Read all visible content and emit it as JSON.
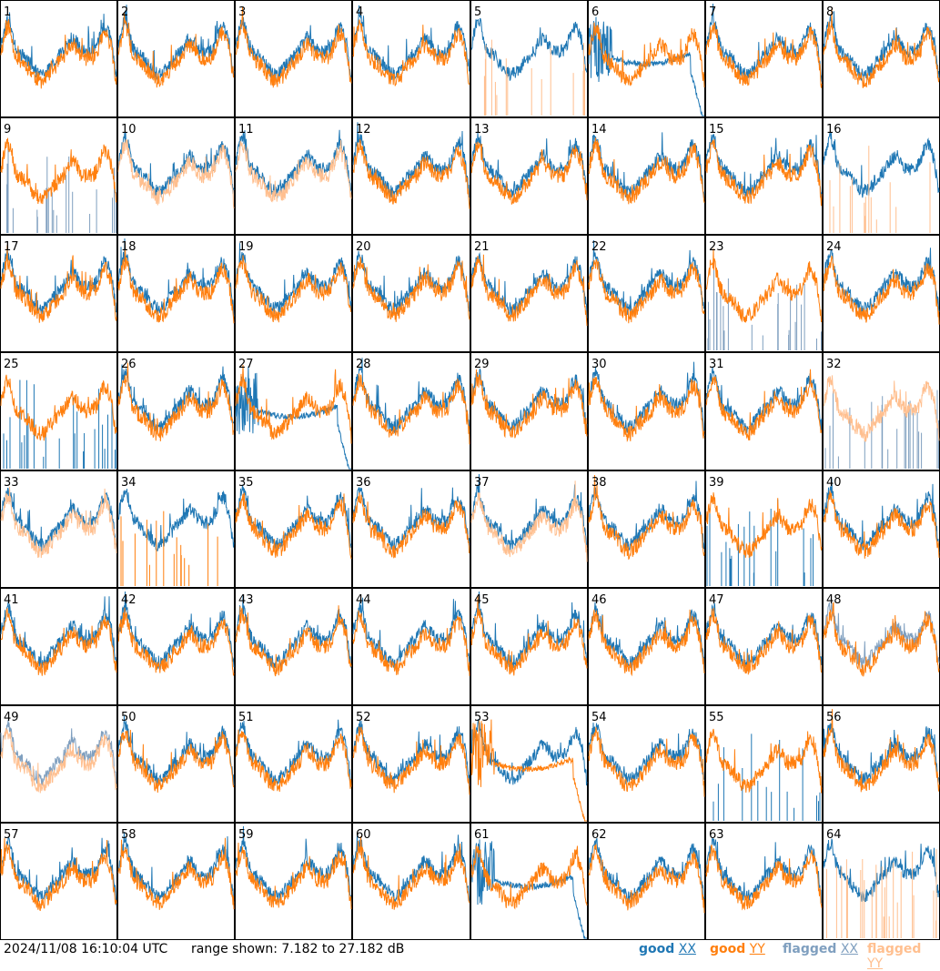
{
  "chart_data": {
    "type": "line",
    "panel_count": 64,
    "panel_labels": [
      "1",
      "2",
      "3",
      "4",
      "5",
      "6",
      "7",
      "8",
      "9",
      "10",
      "11",
      "12",
      "13",
      "14",
      "15",
      "16",
      "17",
      "18",
      "19",
      "20",
      "21",
      "22",
      "23",
      "24",
      "25",
      "26",
      "27",
      "28",
      "29",
      "30",
      "31",
      "32",
      "33",
      "34",
      "35",
      "36",
      "37",
      "38",
      "39",
      "40",
      "41",
      "42",
      "43",
      "44",
      "45",
      "46",
      "47",
      "48",
      "49",
      "50",
      "51",
      "52",
      "53",
      "54",
      "55",
      "56",
      "57",
      "58",
      "59",
      "60",
      "61",
      "62",
      "63",
      "64"
    ],
    "ylim": [
      7.182,
      27.182
    ],
    "range_text": "range shown: 7.182 to 27.182 dB",
    "timestamp": "2024/11/08 16:10:04 UTC",
    "legend": [
      {
        "label": "good",
        "pol": "XX",
        "color": "#1f77b4"
      },
      {
        "label": "good",
        "pol": "YY",
        "color": "#ff7f0e"
      },
      {
        "label": "flagged",
        "pol": "XX",
        "color": "#7f9fbf"
      },
      {
        "label": "flagged",
        "pol": "YY",
        "color": "#ffbf8f"
      }
    ],
    "panel_states": {
      "5": {
        "yy": "flagged",
        "yyShape": "spikes"
      },
      "6": {
        "xx": "good",
        "xxShape": "dip"
      },
      "9": {
        "xx": "flagged",
        "xxShape": "spikes"
      },
      "10": {
        "yy": "flagged"
      },
      "11": {
        "yy": "flagged"
      },
      "16": {
        "yy": "flagged",
        "yyShape": "spikes"
      },
      "23": {
        "xx": "flagged",
        "xxShape": "spikes"
      },
      "25": {
        "xx": "good",
        "xxShape": "spikes"
      },
      "27": {
        "xx": "good",
        "xxShape": "dip"
      },
      "32": {
        "yy": "flagged",
        "xx": "flagged",
        "xxShape": "spikes"
      },
      "33": {
        "yy": "flagged"
      },
      "34": {
        "yy": "good",
        "yyShape": "spikes"
      },
      "37": {
        "yy": "flagged"
      },
      "39": {
        "xx": "good",
        "xxShape": "spikes"
      },
      "48": {
        "xx": "flagged"
      },
      "49": {
        "yy": "flagged",
        "xx": "flagged"
      },
      "53": {
        "yy": "good",
        "yyShape": "dip"
      },
      "55": {
        "xx": "good",
        "xxShape": "spikes"
      },
      "61": {
        "xx": "good",
        "xxShape": "dip"
      },
      "64": {
        "yy": "flagged",
        "yyShape": "spikes"
      }
    }
  }
}
